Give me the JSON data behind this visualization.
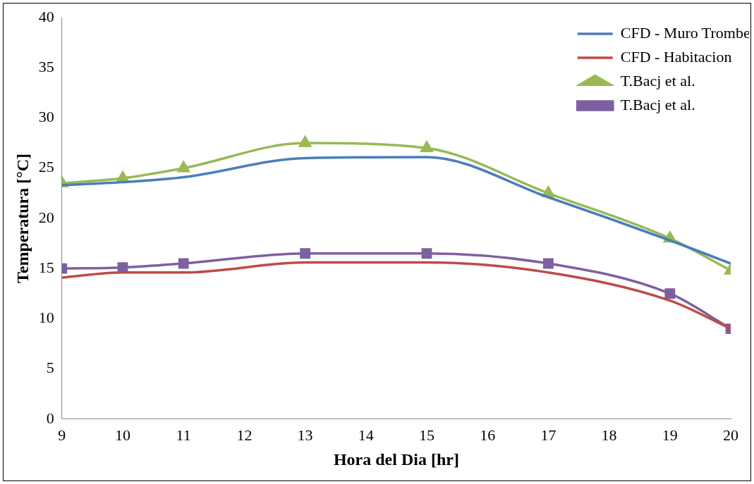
{
  "chart_data": {
    "type": "line",
    "xlabel": "Hora del Dia [hr]",
    "ylabel": "Temperatura [°C]",
    "x": [
      9,
      10,
      11,
      13,
      15,
      17,
      19,
      20
    ],
    "xlim": [
      9,
      20
    ],
    "xticks": [
      9,
      10,
      11,
      12,
      13,
      14,
      15,
      16,
      17,
      18,
      19,
      20
    ],
    "ylim": [
      0,
      40
    ],
    "yticks": [
      0,
      5,
      10,
      15,
      20,
      25,
      30,
      35,
      40
    ],
    "grid": false,
    "legend": "top right",
    "line_style": "solid",
    "series": [
      {
        "name": "CFD - Muro Trombe",
        "color": "#4a7ebb",
        "marker": "none",
        "values": [
          23.3,
          23.6,
          24.1,
          26.0,
          26.1,
          22.1,
          17.8,
          15.5
        ]
      },
      {
        "name": "CFD - Habitacion",
        "color": "#be4b48",
        "marker": "none",
        "values": [
          14.1,
          14.6,
          14.6,
          15.6,
          15.6,
          14.6,
          11.8,
          9.0
        ]
      },
      {
        "name": "T.Bacj et al.",
        "color": "#98b954",
        "marker": "triangle",
        "values": [
          23.5,
          24.0,
          25.0,
          27.5,
          27.0,
          22.5,
          18.0,
          14.8
        ]
      },
      {
        "name": "T.Bacj et al.",
        "color": "#7d60a0",
        "marker": "square",
        "values": [
          15.0,
          15.1,
          15.5,
          16.5,
          16.5,
          15.5,
          12.5,
          9.0
        ]
      }
    ]
  }
}
